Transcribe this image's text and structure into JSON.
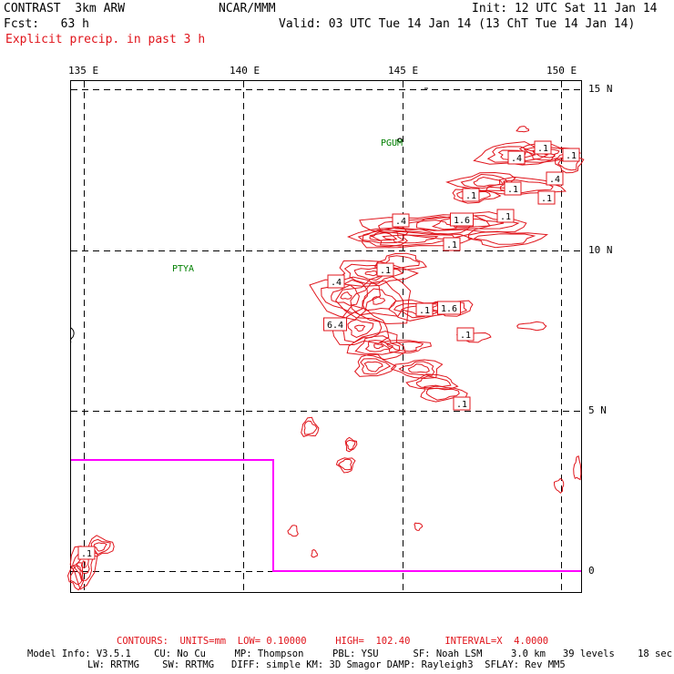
{
  "header": {
    "model_name": "CONTRAST  3km ARW",
    "org": "NCAR/MMM",
    "init": "Init: 12 UTC Sat 11 Jan 14",
    "fcst": "Fcst:   63 h",
    "valid": "Valid: 03 UTC Tue 14 Jan 14 (13 ChT Tue 14 Jan 14)",
    "field": "Explicit precip. in past 3 h"
  },
  "map": {
    "lon_labels": [
      "135 E",
      "140 E",
      "145 E",
      "150 E"
    ],
    "lat_labels": [
      "15 N",
      "10 N",
      "5 N",
      "0"
    ],
    "stations": [
      "PGUM",
      "PTYA"
    ],
    "contour_labels": [
      ".1",
      ".4",
      ".1",
      ".4",
      ".1",
      ".1",
      ".1",
      ".4",
      "1.6",
      ".1",
      ".1",
      ".1",
      ".4",
      ".1",
      "1.6",
      "6.4",
      ".1",
      ".1",
      ".1",
      ".4",
      ".1"
    ],
    "colors": {
      "contour": "#e0141b",
      "boundary": "#ff00ff",
      "station": "#008000",
      "grid": "#000000"
    }
  },
  "footer": {
    "contours": "CONTOURS:  UNITS=mm  LOW= 0.10000     HIGH=  102.40      INTERVAL=X  4.0000",
    "model_info_1": "Model Info: V3.5.1    CU: No Cu     MP: Thompson     PBL: YSU      SF: Noah LSM     3.0 km   39 levels    18 sec",
    "model_info_2": "LW: RRTMG    SW: RRTMG   DIFF: simple KM: 3D Smagor DAMP: Rayleigh3  SFLAY: Rev MM5"
  }
}
